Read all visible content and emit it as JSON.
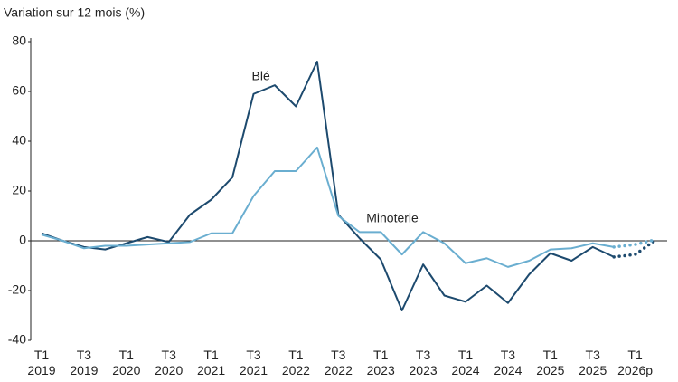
{
  "chart_data": {
    "type": "line",
    "y_label": "Variation sur 12 mois (%)",
    "categories": [
      "T1 2019",
      null,
      "T3 2019",
      null,
      "T1 2020",
      null,
      "T3 2020",
      null,
      "T1 2021",
      null,
      "T3 2021",
      null,
      "T1 2022",
      null,
      "T3 2022",
      null,
      "T1 2023",
      null,
      "T3 2023",
      null,
      "T1 2024",
      null,
      "T3 2024",
      null,
      "T1 2025",
      null,
      "T3 2025",
      null,
      "T1 2026p",
      null
    ],
    "dotted_from_index": 27,
    "series": [
      {
        "name": "Blé",
        "color": "#1d4a6e",
        "values": [
          3,
          0,
          -2.5,
          -3.5,
          -1,
          1.5,
          -0.5,
          10.5,
          16.5,
          25.5,
          59,
          62.5,
          54,
          72,
          10.5,
          1,
          -7.5,
          -28,
          -9.5,
          -22,
          -24.5,
          -18,
          -25,
          -13.5,
          -5,
          -8,
          -2.5,
          -6.5,
          -5.5,
          0.5
        ]
      },
      {
        "name": "Minoterie",
        "color": "#6aaed0",
        "values": [
          2.5,
          0,
          -3,
          -2,
          -2,
          -1.5,
          -1,
          -0.5,
          3,
          3,
          18,
          28,
          28,
          37.5,
          10,
          3.5,
          3.5,
          -5.5,
          3.5,
          -1,
          -9,
          -7,
          -10.5,
          -8,
          -3.5,
          -3,
          -1,
          -2.5,
          -1.5,
          0.5
        ]
      }
    ],
    "ylim": [
      -40,
      80
    ],
    "yticks": [
      -40,
      -20,
      0,
      20,
      40,
      60,
      80
    ],
    "grid": false
  }
}
